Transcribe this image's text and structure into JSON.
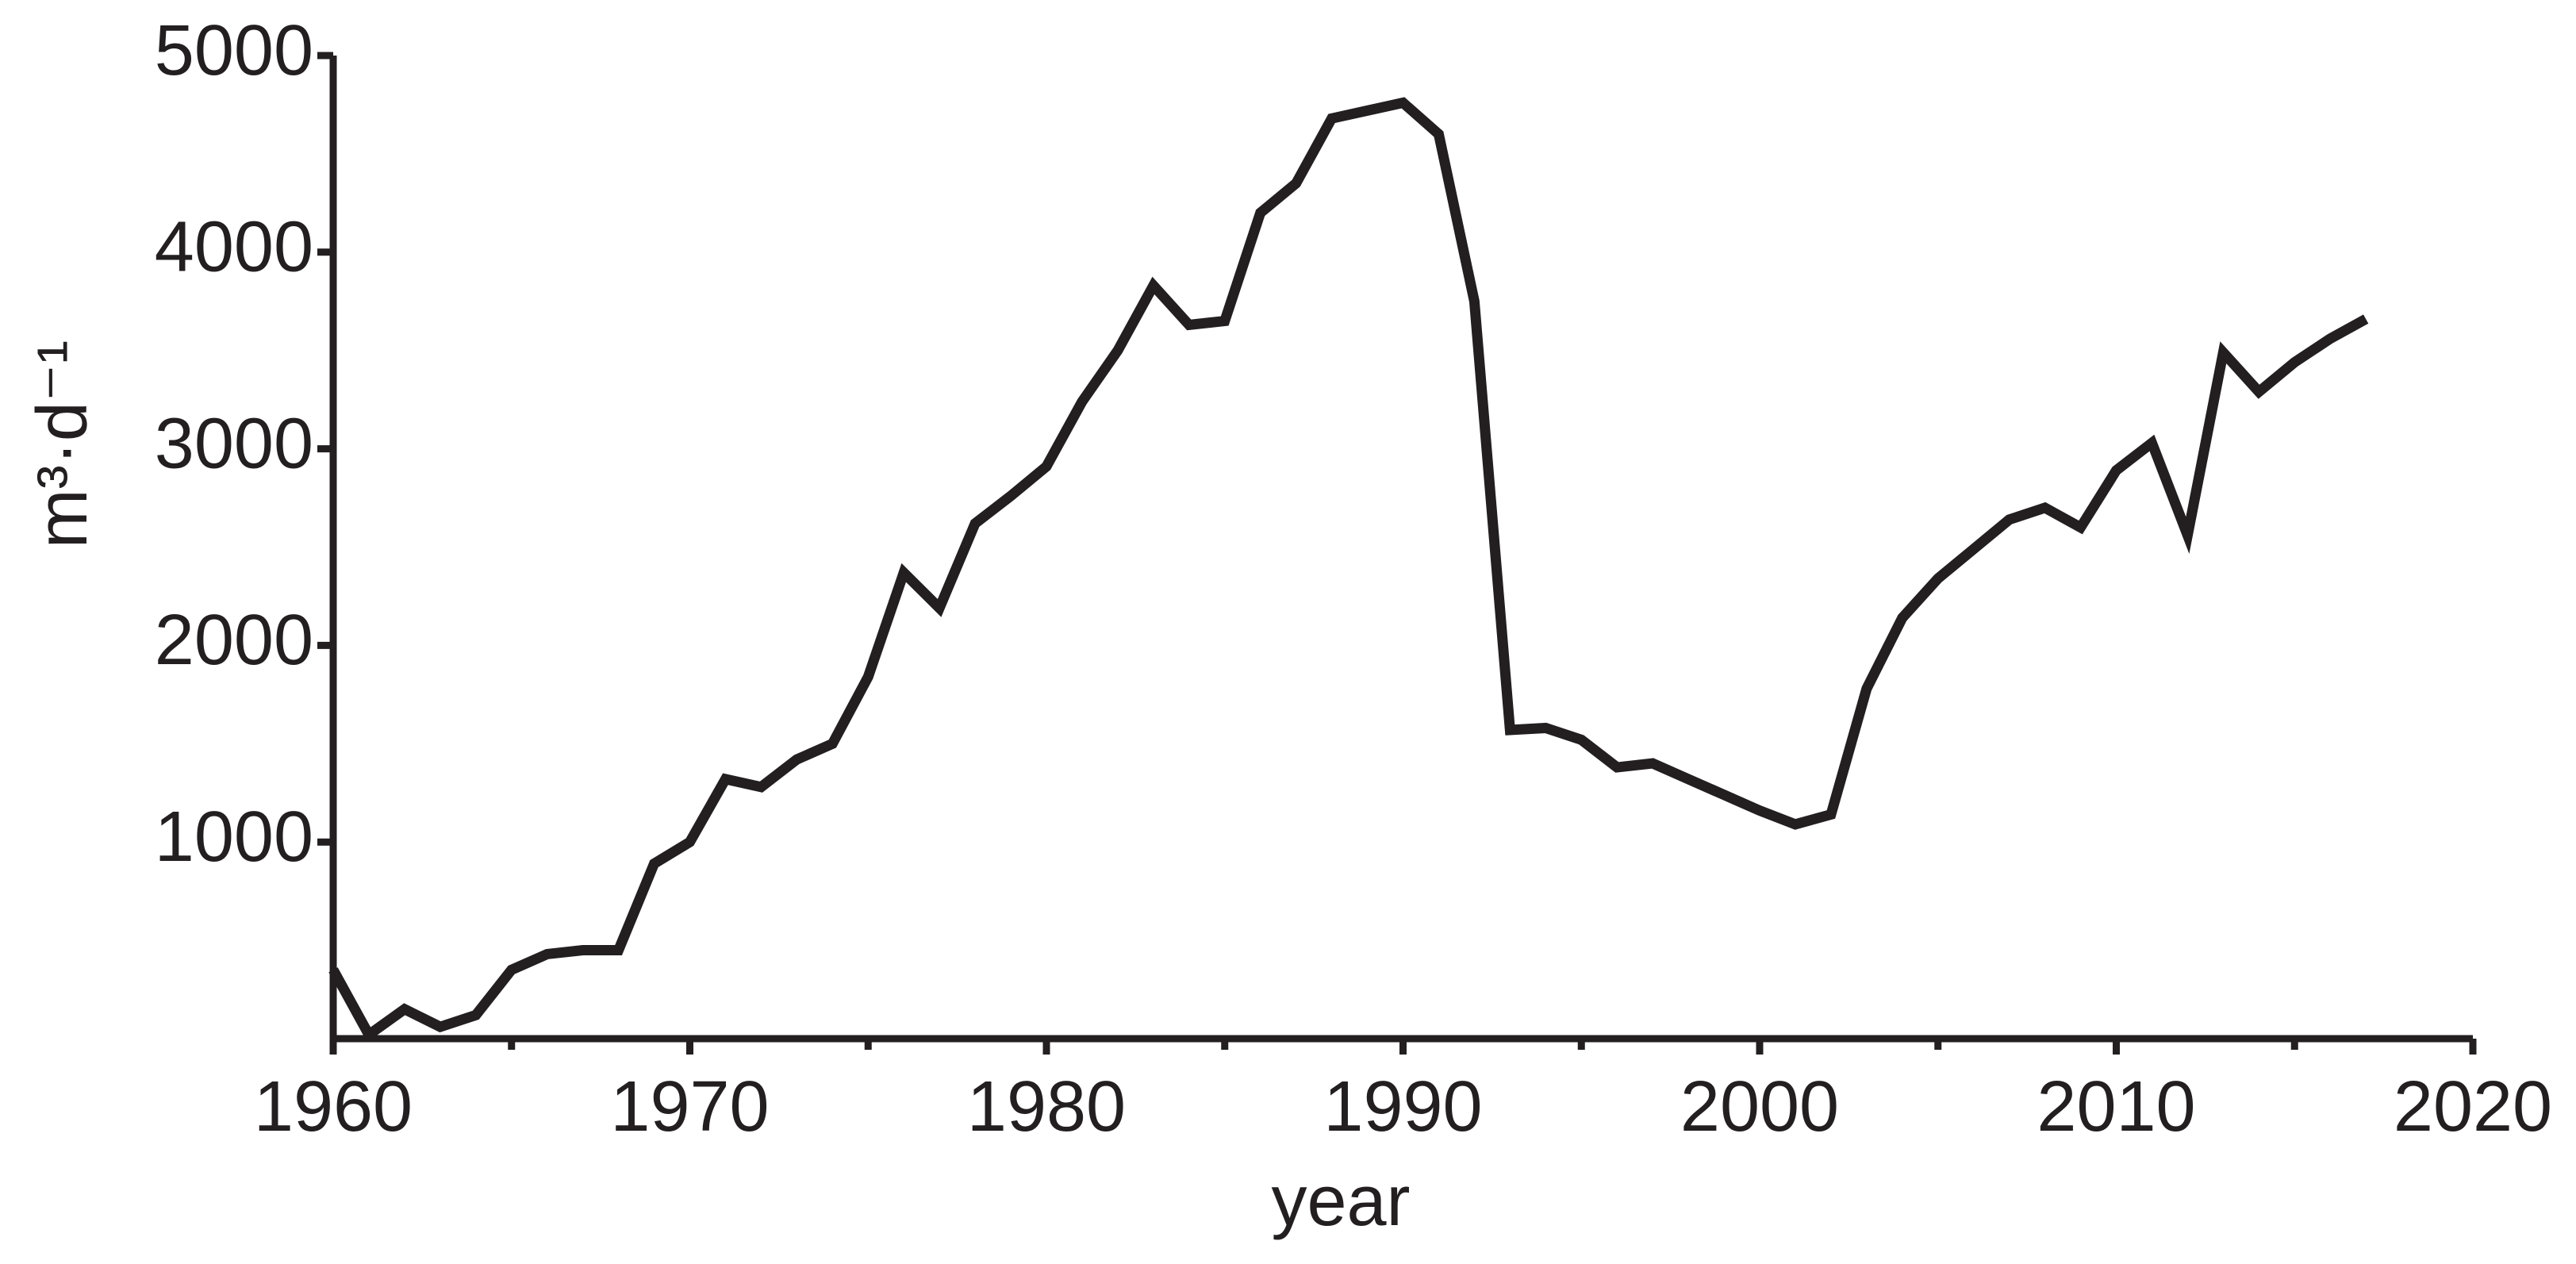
{
  "chart_data": {
    "type": "line",
    "xlabel": "year",
    "ylabel": "m³·d⁻¹",
    "x": [
      1960,
      1961,
      1962,
      1963,
      1964,
      1965,
      1966,
      1967,
      1968,
      1969,
      1970,
      1971,
      1972,
      1973,
      1974,
      1975,
      1976,
      1977,
      1978,
      1979,
      1980,
      1981,
      1982,
      1983,
      1984,
      1985,
      1986,
      1987,
      1988,
      1989,
      1990,
      1991,
      1992,
      1993,
      1994,
      1995,
      1996,
      1997,
      1998,
      1999,
      2000,
      2001,
      2002,
      2003,
      2004,
      2005,
      2006,
      2007,
      2008,
      2009,
      2010,
      2011,
      2012,
      2013,
      2014,
      2015,
      2016,
      2017
    ],
    "values": [
      350,
      20,
      150,
      60,
      120,
      350,
      430,
      450,
      450,
      890,
      1000,
      1320,
      1280,
      1420,
      1500,
      1840,
      2370,
      2190,
      2620,
      2760,
      2910,
      3240,
      3500,
      3830,
      3630,
      3650,
      4200,
      4350,
      4680,
      4720,
      4760,
      4600,
      3750,
      1570,
      1580,
      1520,
      1380,
      1400,
      1320,
      1240,
      1160,
      1090,
      1140,
      1780,
      2140,
      2340,
      2490,
      2640,
      2700,
      2600,
      2890,
      3030,
      2560,
      3490,
      3290,
      3440,
      3560,
      3660
    ],
    "color": "#231f20",
    "xlim": [
      1960,
      2020
    ],
    "xticks": [
      1960,
      1970,
      1980,
      1990,
      2000,
      2010,
      2020
    ],
    "xminorticks": [
      1965,
      1975,
      1985,
      1995,
      2005,
      2015
    ],
    "ylim": [
      0,
      5000
    ],
    "yticks": [
      1000,
      2000,
      3000,
      4000,
      5000
    ]
  }
}
